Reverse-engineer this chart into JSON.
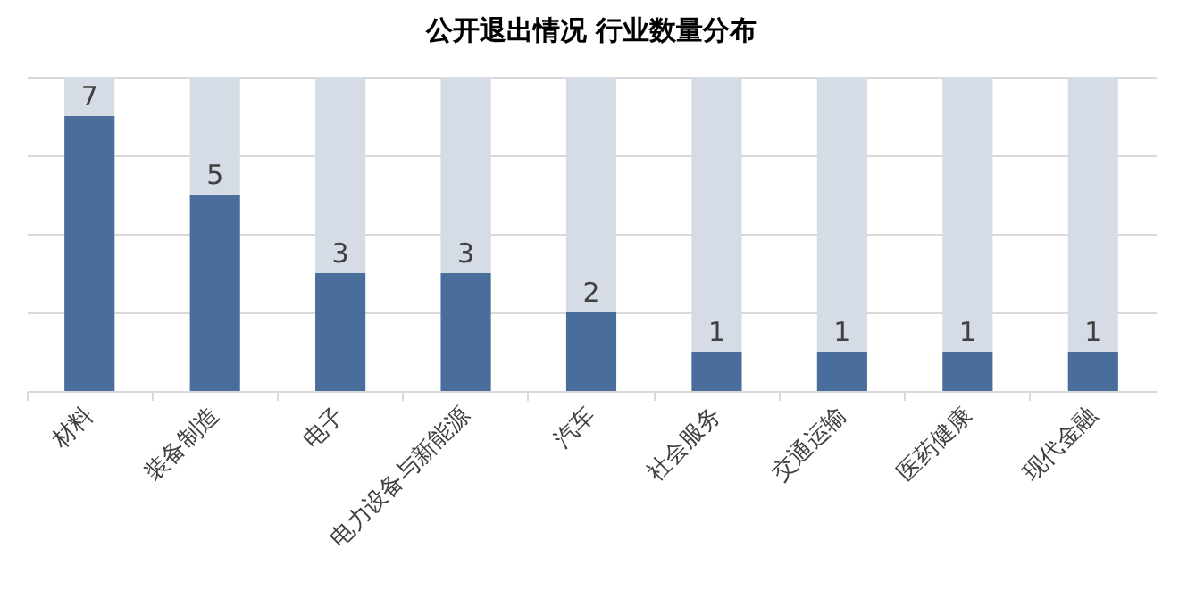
{
  "chart_data": {
    "type": "bar",
    "title": "公开退出情况 行业数量分布",
    "categories": [
      "材料",
      "装备制造",
      "电子",
      "电力设备与新能源",
      "汽车",
      "社会服务",
      "交通运输",
      "医药健康",
      "现代金融"
    ],
    "stacked": true,
    "series": [
      {
        "color": "#4a6e9b",
        "values": [
          7,
          5,
          3,
          3,
          2,
          1,
          1,
          1,
          1
        ],
        "value_labels": [
          "7",
          "5",
          "3",
          "3",
          "2",
          "1",
          "1",
          "1",
          "1"
        ]
      },
      {
        "color": "#d6dce5",
        "values": [
          1,
          3,
          5,
          5,
          6,
          7,
          7,
          7,
          7
        ]
      }
    ],
    "ylim": [
      0,
      8
    ],
    "yticks": [
      {
        "value": 0,
        "label": null
      },
      {
        "value": 2,
        "label": null
      },
      {
        "value": 4,
        "label": null
      },
      {
        "value": 6,
        "label": null
      },
      {
        "value": 8,
        "label": null
      }
    ],
    "grid": "y",
    "tick_labels": "x",
    "legend": false
  }
}
